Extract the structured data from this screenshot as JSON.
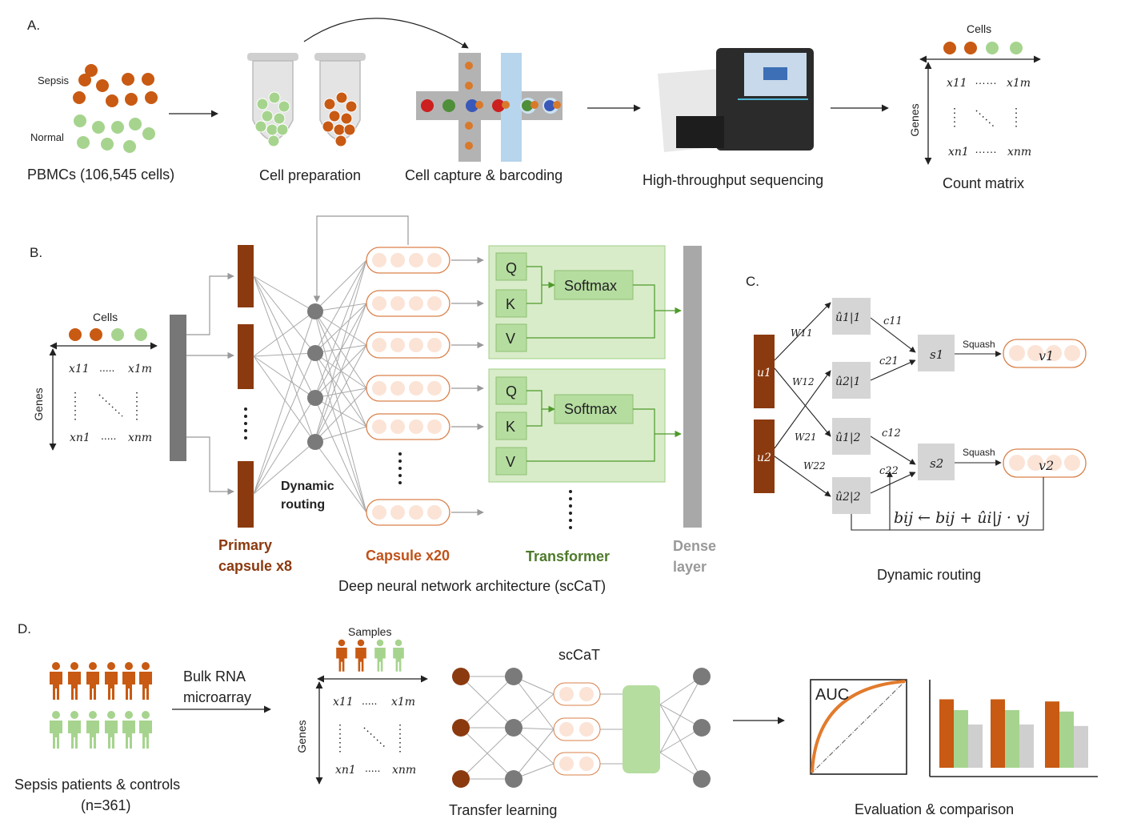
{
  "colors": {
    "sepsis": "#c85a13",
    "normal": "#a6d48e",
    "primary_capsule": "#8b3a0f",
    "capsule_fill": "#fbe3d6",
    "capsule_stroke": "#d9804a",
    "transformer_fill": "#d8ecc9",
    "transformer_box": "#b5dda0",
    "transformer_text": "#4e7a2b",
    "dense": "#a8a8a8",
    "routing_node": "#7a7a7a",
    "u_hat_box": "#d5d5d5",
    "bar_gray": "#cfcfcf"
  },
  "panel_a": {
    "letter": "A.",
    "sepsis_label": "Sepsis",
    "normal_label": "Normal",
    "pbmc_label": "PBMCs (106,545 cells)",
    "cell_prep_label": "Cell preparation",
    "capture_label": "Cell capture & barcoding",
    "sequencing_label": "High-throughput sequencing",
    "count_matrix_label": "Count matrix",
    "cells_label": "Cells",
    "genes_label": "Genes",
    "m11": "x11",
    "m1m": "x1m",
    "mn1": "xn1",
    "mnm": "xnm"
  },
  "panel_b": {
    "letter": "B.",
    "cells_label": "Cells",
    "genes_label": "Genes",
    "primary_capsule_label_1": "Primary",
    "primary_capsule_label_2": "capsule x8",
    "dynamic_label_1": "Dynamic",
    "dynamic_label_2": "routing",
    "capsule_label": "Capsule x20",
    "transformer_label": "Transformer",
    "dense_label_1": "Dense",
    "dense_label_2": "layer",
    "q": "Q",
    "k": "K",
    "v": "V",
    "softmax": "Softmax",
    "caption": "Deep neural network architecture (scCaT)"
  },
  "panel_c": {
    "letter": "C.",
    "u1": "u1",
    "u2": "u2",
    "w11": "W11",
    "w12": "W12",
    "w21": "W21",
    "w22": "W22",
    "uh11": "û1|1",
    "uh21": "û2|1",
    "uh12": "û1|2",
    "uh22": "û2|2",
    "c11": "c11",
    "c21": "c21",
    "c12": "c12",
    "c22": "c22",
    "s1": "s1",
    "s2": "s2",
    "squash": "Squash",
    "v1": "v1",
    "v2": "v2",
    "update_rule": "bij ← bij + ûi|j · vj",
    "caption": "Dynamic routing"
  },
  "panel_d": {
    "letter": "D.",
    "bulk_1": "Bulk RNA",
    "bulk_2": "microarray",
    "patients_1": "Sepsis patients  & controls",
    "patients_2": "(n=361)",
    "samples_label": "Samples",
    "genes_label": "Genes",
    "sccat_label": "scCaT",
    "transfer_label": "Transfer learning",
    "auc_label": "AUC",
    "eval_label": "Evaluation & comparison",
    "bars": [
      [
        0.95,
        0.8,
        0.6
      ],
      [
        0.95,
        0.8,
        0.6
      ],
      [
        0.92,
        0.78,
        0.58
      ]
    ]
  }
}
